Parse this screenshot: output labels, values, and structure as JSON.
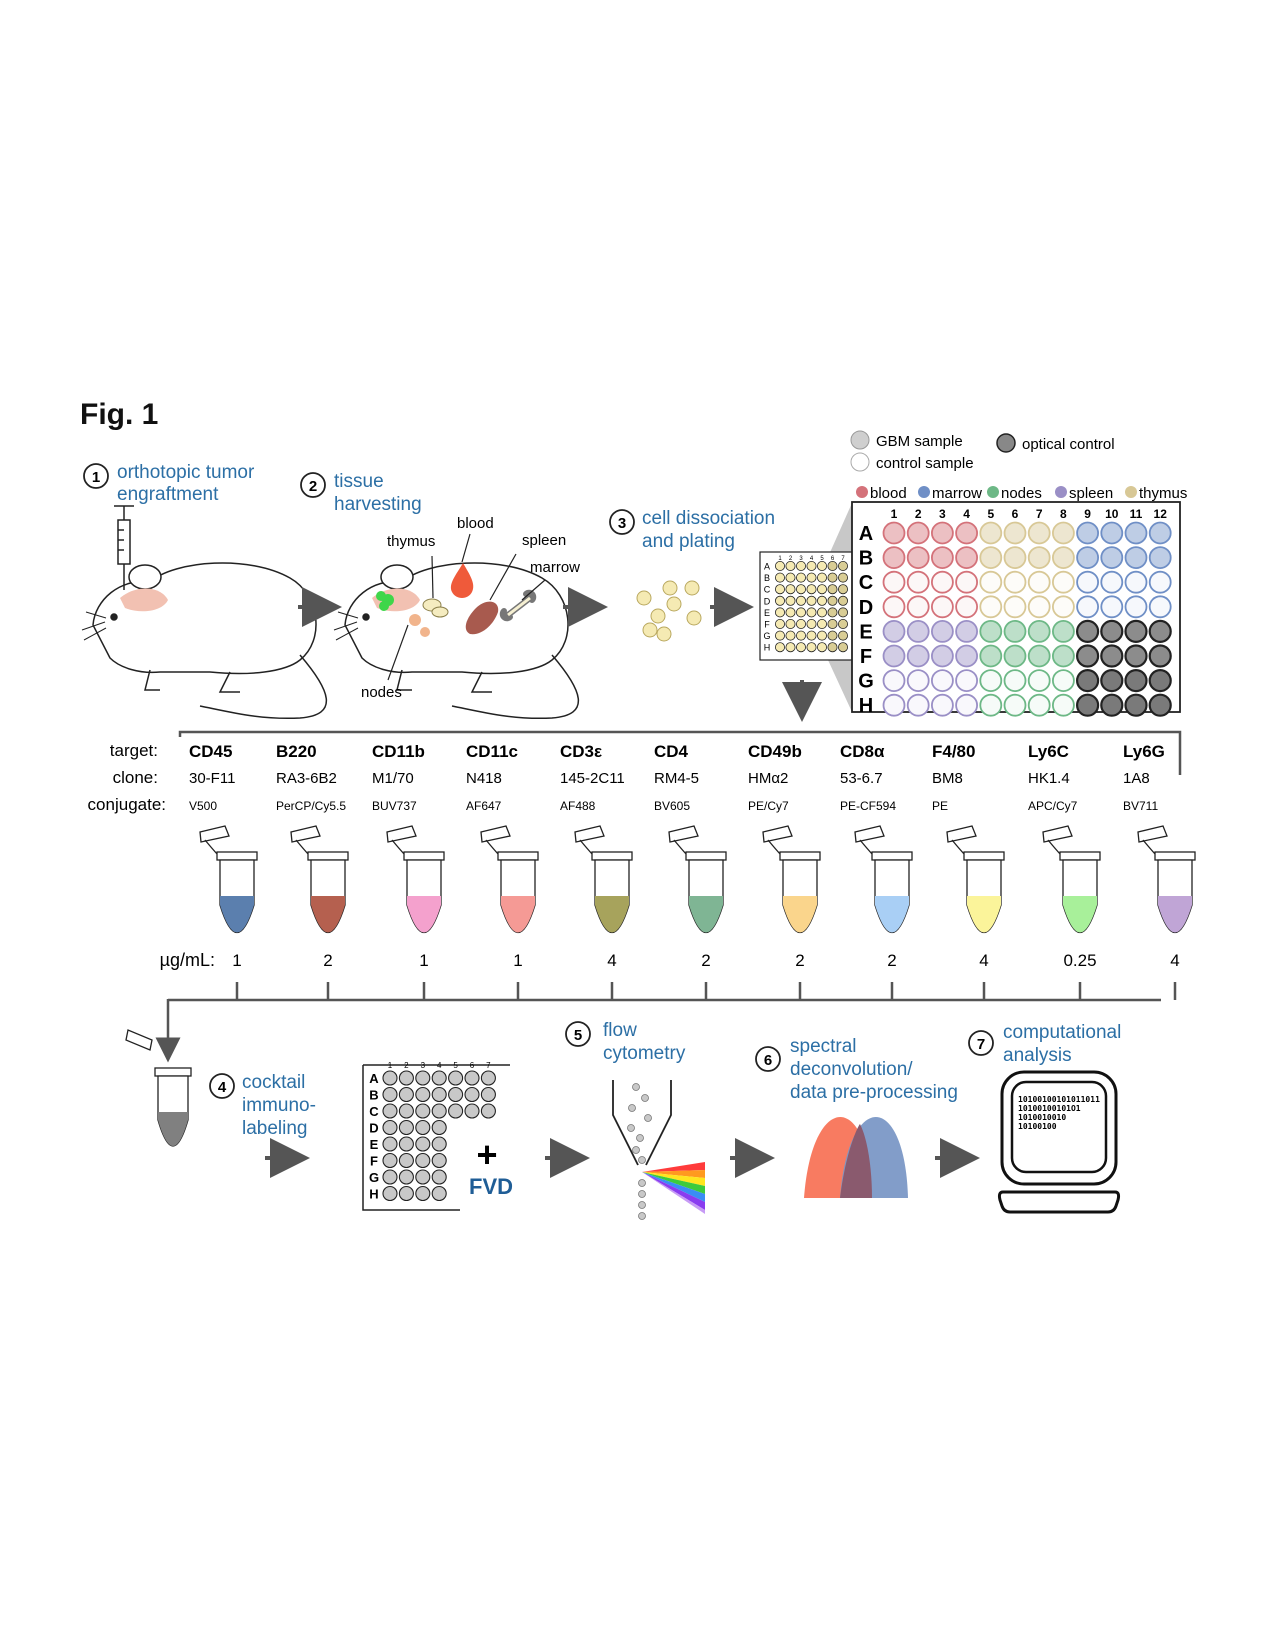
{
  "figure_label": "Fig. 1",
  "steps": [
    {
      "num": "1",
      "line1": "orthotopic tumor",
      "line2": "engraftment"
    },
    {
      "num": "2",
      "line1": "tissue",
      "line2": "harvesting"
    },
    {
      "num": "3",
      "line1": "cell dissociation",
      "line2": "and plating"
    },
    {
      "num": "4",
      "line1": "cocktail",
      "line2": "immuno-",
      "line3": "labeling"
    },
    {
      "num": "5",
      "line1": "flow",
      "line2": "cytometry"
    },
    {
      "num": "6",
      "line1": "spectral",
      "line2": "deconvolution/",
      "line3": "data pre-processing"
    },
    {
      "num": "7",
      "line1": "computational",
      "line2": "analysis"
    }
  ],
  "tissue_labels": {
    "thymus": "thymus",
    "blood": "blood",
    "spleen": "spleen",
    "marrow": "marrow",
    "nodes": "nodes"
  },
  "legend": {
    "gbm": "GBM sample",
    "control": "control sample",
    "optical": "optical control",
    "tissues": [
      {
        "name": "blood",
        "color": "#d4727a"
      },
      {
        "name": "marrow",
        "color": "#6f8fc6"
      },
      {
        "name": "nodes",
        "color": "#6db886"
      },
      {
        "name": "spleen",
        "color": "#9a8fc6"
      },
      {
        "name": "thymus",
        "color": "#d8c896"
      }
    ]
  },
  "plate": {
    "rows": [
      "A",
      "B",
      "C",
      "D",
      "E",
      "F",
      "G",
      "H"
    ],
    "cols": [
      "1",
      "2",
      "3",
      "4",
      "5",
      "6",
      "7",
      "8",
      "9",
      "10",
      "11",
      "12"
    ]
  },
  "small_plate_cols": [
    "1",
    "2",
    "3",
    "4",
    "5",
    "6",
    "7"
  ],
  "row_headers": {
    "target": "target:",
    "clone": "clone:",
    "conjugate": "conjugate:",
    "conc": "µg/mL:"
  },
  "antibodies": [
    {
      "target": "CD45",
      "clone": "30-F11",
      "conjugate": "V500",
      "conc": "1",
      "color": "#5b7fae"
    },
    {
      "target": "B220",
      "clone": "RA3-6B2",
      "conjugate": "PerCP/Cy5.5",
      "conc": "2",
      "color": "#b5604f"
    },
    {
      "target": "CD11b",
      "clone": "M1/70",
      "conjugate": "BUV737",
      "conc": "1",
      "color": "#f4a1cd"
    },
    {
      "target": "CD11c",
      "clone": "N418",
      "conjugate": "AF647",
      "conc": "1",
      "color": "#f59a95"
    },
    {
      "target": "CD3ε",
      "clone": "145-2C11",
      "conjugate": "AF488",
      "conc": "4",
      "color": "#a7a35c"
    },
    {
      "target": "CD4",
      "clone": "RM4-5",
      "conjugate": "BV605",
      "conc": "2",
      "color": "#7fb594"
    },
    {
      "target": "CD49b",
      "clone": "HMα2",
      "conjugate": "PE/Cy7",
      "conc": "2",
      "color": "#fad58c"
    },
    {
      "target": "CD8α",
      "clone": "53-6.7",
      "conjugate": "PE-CF594",
      "conc": "2",
      "color": "#a9cff5"
    },
    {
      "target": "F4/80",
      "clone": "BM8",
      "conjugate": "PE",
      "conc": "4",
      "color": "#fbf49a"
    },
    {
      "target": "Ly6C",
      "clone": "HK1.4",
      "conjugate": "APC/Cy7",
      "conc": "0.25",
      "color": "#a8f09a"
    },
    {
      "target": "Ly6G",
      "clone": "1A8",
      "conjugate": "BV711",
      "conc": "4",
      "color": "#c0a5d6"
    }
  ],
  "fvd": "FVD",
  "binary_lines": [
    "10100100101011011",
    "10100100101O1",
    "1010010010",
    "10100100"
  ]
}
